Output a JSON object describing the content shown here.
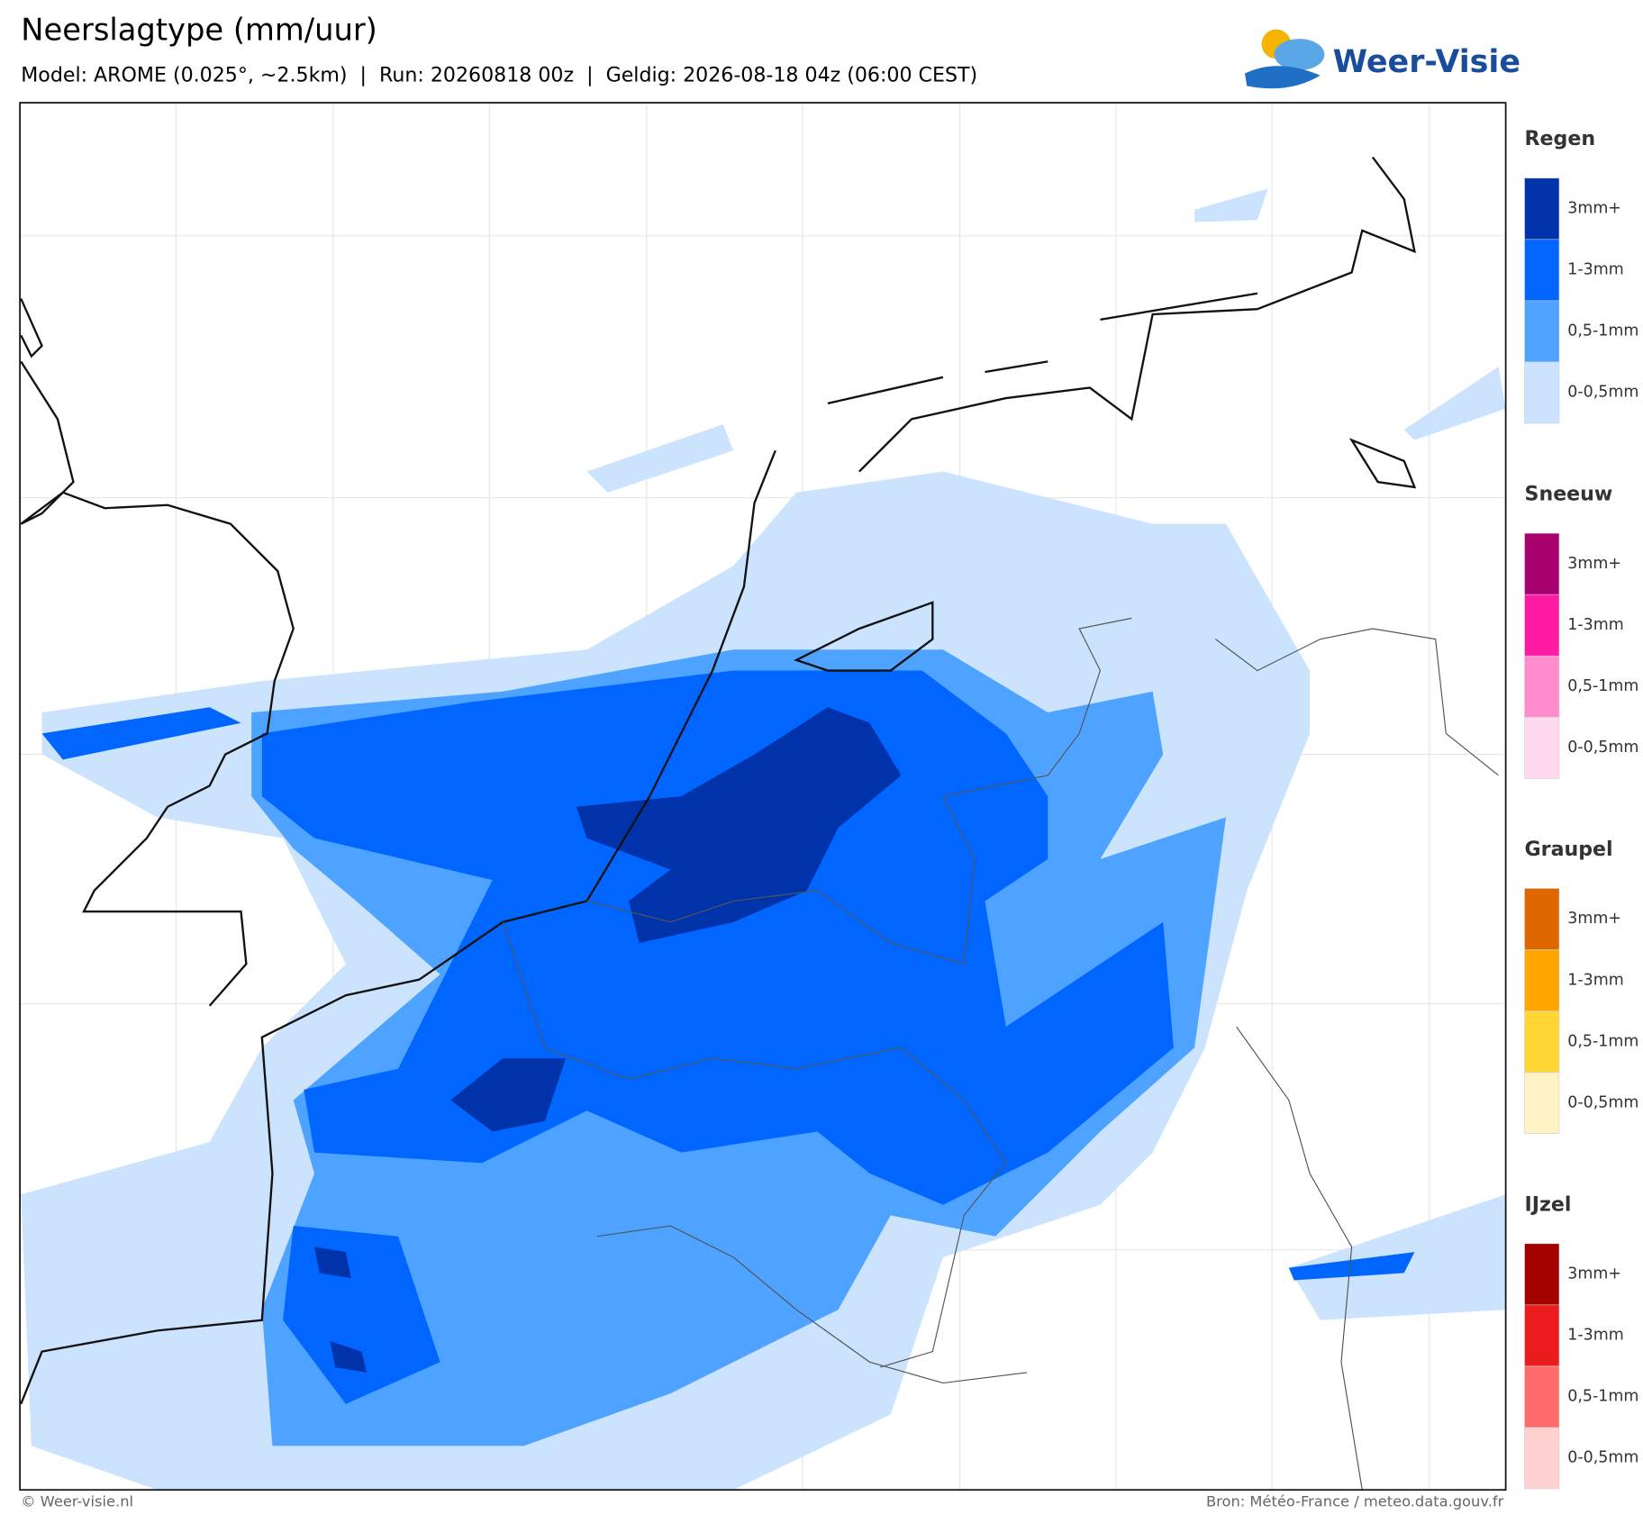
{
  "header": {
    "title": "Neerslagtype (mm/uur)",
    "subtitle": "Model: AROME (0.025°, ~2.5km)  |  Run: 20260818 00z  |  Geldig: 2026-08-18 04z (06:00 CEST)",
    "logo": "Weer-Visie"
  },
  "legend": {
    "sections": [
      {
        "title": "Regen",
        "items": [
          {
            "label": "3mm+",
            "color": "#0033aa"
          },
          {
            "label": "1-3mm",
            "color": "#0066ff"
          },
          {
            "label": "0,5-1mm",
            "color": "#4da3ff"
          },
          {
            "label": "0-0,5mm",
            "color": "#cce3fd"
          }
        ]
      },
      {
        "title": "Sneeuw",
        "items": [
          {
            "label": "3mm+",
            "color": "#a8006e"
          },
          {
            "label": "1-3mm",
            "color": "#ff1aa3"
          },
          {
            "label": "0,5-1mm",
            "color": "#ff8ccc"
          },
          {
            "label": "0-0,5mm",
            "color": "#ffd9ee"
          }
        ]
      },
      {
        "title": "Graupel",
        "items": [
          {
            "label": "3mm+",
            "color": "#e06600"
          },
          {
            "label": "1-3mm",
            "color": "#ffa600"
          },
          {
            "label": "0,5-1mm",
            "color": "#ffd633"
          },
          {
            "label": "0-0,5mm",
            "color": "#fff3c4"
          }
        ]
      },
      {
        "title": "IJzel",
        "items": [
          {
            "label": "3mm+",
            "color": "#a30000"
          },
          {
            "label": "1-3mm",
            "color": "#eb1c1c"
          },
          {
            "label": "0,5-1mm",
            "color": "#ff6b6b"
          },
          {
            "label": "0-0,5mm",
            "color": "#ffd1d1"
          }
        ]
      }
    ]
  },
  "footer": {
    "left": "© Weer-visie.nl",
    "right": "Bron: Météo-France / meteo.data.gouv.fr"
  }
}
